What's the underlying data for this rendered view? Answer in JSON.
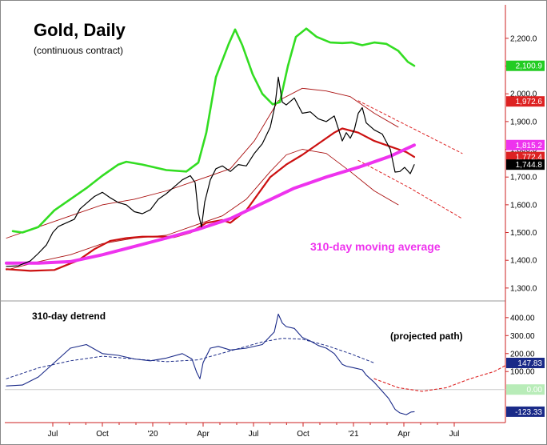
{
  "chart_data": [
    {
      "type": "line",
      "title": "Gold, Daily",
      "subtitle": "(continuous contract)",
      "annotation": "310-day moving average",
      "x_ticks": [
        "Jul",
        "Oct",
        "'20",
        "Apr",
        "Jul",
        "Oct",
        "'21",
        "Apr",
        "Jul"
      ],
      "y_ticks": [
        "1,300.0",
        "1,400.0",
        "1,500.0",
        "1,600.0",
        "1,700.0",
        "1,800.0",
        "1,900.0",
        "2,000.0",
        "2,100.0",
        "2,200.0"
      ],
      "y_tick_values": [
        1300,
        1400,
        1500,
        1600,
        1700,
        1800,
        1900,
        2000,
        2100,
        2200
      ],
      "ylim": [
        1265,
        2315
      ],
      "grid": false,
      "value_badges": [
        {
          "label": "2,100.9",
          "value": 2100.9,
          "color": "#22cc22",
          "text_color": "#ffffff"
        },
        {
          "label": "1,972.6",
          "value": 1972.6,
          "color": "#dd2222",
          "text_color": "#ffffff"
        },
        {
          "label": "1,815.2",
          "value": 1815.2,
          "color": "#ee33ee",
          "text_color": "#ffffff"
        },
        {
          "label": "1,772.4",
          "value": 1772.4,
          "color": "#dd2222",
          "text_color": "#ffffff"
        },
        {
          "label": "1,744.8",
          "value": 1744.8,
          "color": "#000000",
          "text_color": "#ffffff"
        }
      ],
      "series": [
        {
          "role": "price",
          "color": "#000000",
          "points": [
            [
              0,
              1378
            ],
            [
              15,
              1380
            ],
            [
              30,
              1398
            ],
            [
              40,
              1425
            ],
            [
              50,
              1455
            ],
            [
              58,
              1500
            ],
            [
              65,
              1522
            ],
            [
              75,
              1535
            ],
            [
              85,
              1548
            ],
            [
              92,
              1585
            ],
            [
              100,
              1605
            ],
            [
              110,
              1630
            ],
            [
              120,
              1645
            ],
            [
              130,
              1625
            ],
            [
              140,
              1608
            ],
            [
              150,
              1600
            ],
            [
              160,
              1575
            ],
            [
              170,
              1568
            ],
            [
              180,
              1582
            ],
            [
              190,
              1620
            ],
            [
              200,
              1640
            ],
            [
              210,
              1665
            ],
            [
              220,
              1690
            ],
            [
              230,
              1705
            ],
            [
              236,
              1680
            ],
            [
              240,
              1570
            ],
            [
              244,
              1520
            ],
            [
              248,
              1610
            ],
            [
              255,
              1690
            ],
            [
              262,
              1730
            ],
            [
              270,
              1740
            ],
            [
              280,
              1720
            ],
            [
              290,
              1745
            ],
            [
              300,
              1740
            ],
            [
              310,
              1785
            ],
            [
              320,
              1820
            ],
            [
              330,
              1880
            ],
            [
              336,
              1960
            ],
            [
              340,
              2060
            ],
            [
              345,
              1970
            ],
            [
              350,
              1960
            ],
            [
              360,
              1985
            ],
            [
              370,
              1930
            ],
            [
              380,
              1935
            ],
            [
              390,
              1910
            ],
            [
              400,
              1900
            ],
            [
              410,
              1920
            ],
            [
              420,
              1830
            ],
            [
              425,
              1860
            ],
            [
              430,
              1840
            ],
            [
              435,
              1870
            ],
            [
              440,
              1930
            ],
            [
              445,
              1950
            ],
            [
              450,
              1895
            ],
            [
              460,
              1870
            ],
            [
              470,
              1855
            ],
            [
              480,
              1800
            ],
            [
              486,
              1718
            ],
            [
              492,
              1720
            ],
            [
              498,
              1735
            ],
            [
              505,
              1712
            ],
            [
              510,
              1744.8
            ]
          ]
        },
        {
          "role": "ma-310",
          "color": "#ee33ee",
          "points": [
            [
              0,
              1390
            ],
            [
              40,
              1390
            ],
            [
              80,
              1395
            ],
            [
              120,
              1420
            ],
            [
              160,
              1450
            ],
            [
              200,
              1480
            ],
            [
              240,
              1512
            ],
            [
              280,
              1550
            ],
            [
              320,
              1605
            ],
            [
              360,
              1660
            ],
            [
              400,
              1700
            ],
            [
              440,
              1735
            ],
            [
              480,
              1775
            ],
            [
              510,
              1815.2
            ]
          ]
        },
        {
          "role": "ma-short",
          "color": "#cc1111",
          "points": [
            [
              0,
              1368
            ],
            [
              30,
              1362
            ],
            [
              60,
              1365
            ],
            [
              90,
              1400
            ],
            [
              110,
              1440
            ],
            [
              130,
              1470
            ],
            [
              150,
              1480
            ],
            [
              170,
              1485
            ],
            [
              190,
              1485
            ],
            [
              210,
              1484
            ],
            [
              230,
              1500
            ],
            [
              250,
              1535
            ],
            [
              270,
              1545
            ],
            [
              280,
              1535
            ],
            [
              300,
              1580
            ],
            [
              330,
              1700
            ],
            [
              350,
              1745
            ],
            [
              370,
              1780
            ],
            [
              390,
              1820
            ],
            [
              410,
              1860
            ],
            [
              420,
              1875
            ],
            [
              440,
              1860
            ],
            [
              460,
              1830
            ],
            [
              480,
              1810
            ],
            [
              500,
              1790
            ],
            [
              510,
              1772.4
            ]
          ]
        },
        {
          "role": "envelope-upper",
          "color": "#aa1111",
          "points": [
            [
              0,
              1480
            ],
            [
              40,
              1520
            ],
            [
              80,
              1560
            ],
            [
              120,
              1600
            ],
            [
              160,
              1620
            ],
            [
              200,
              1650
            ],
            [
              240,
              1690
            ],
            [
              280,
              1730
            ],
            [
              310,
              1830
            ],
            [
              340,
              1975
            ],
            [
              370,
              2020
            ],
            [
              400,
              2010
            ],
            [
              430,
              1990
            ],
            [
              460,
              1930
            ],
            [
              490,
              1880
            ]
          ]
        },
        {
          "role": "envelope-lower",
          "color": "#aa1111",
          "points": [
            [
              0,
              1365
            ],
            [
              40,
              1395
            ],
            [
              80,
              1420
            ],
            [
              120,
              1460
            ],
            [
              160,
              1480
            ],
            [
              200,
              1490
            ],
            [
              240,
              1530
            ],
            [
              270,
              1560
            ],
            [
              300,
              1620
            ],
            [
              330,
              1720
            ],
            [
              350,
              1780
            ],
            [
              370,
              1800
            ],
            [
              400,
              1785
            ],
            [
              430,
              1720
            ],
            [
              460,
              1650
            ],
            [
              490,
              1600
            ]
          ]
        },
        {
          "role": "envelope-upper-projection",
          "color": "#dd2222",
          "dashed": true,
          "points": [
            [
              440,
              1975
            ],
            [
              505,
              1880
            ],
            [
              570,
              1785
            ]
          ]
        },
        {
          "role": "envelope-lower-projection",
          "color": "#dd2222",
          "dashed": true,
          "points": [
            [
              440,
              1760
            ],
            [
              505,
              1660
            ],
            [
              570,
              1550
            ]
          ]
        },
        {
          "role": "cycle",
          "color": "#33dd22",
          "points": [
            [
              8,
              1505
            ],
            [
              20,
              1500
            ],
            [
              40,
              1520
            ],
            [
              60,
              1580
            ],
            [
              80,
              1620
            ],
            [
              100,
              1660
            ],
            [
              120,
              1705
            ],
            [
              140,
              1745
            ],
            [
              150,
              1755
            ],
            [
              170,
              1745
            ],
            [
              200,
              1725
            ],
            [
              225,
              1720
            ],
            [
              240,
              1752
            ],
            [
              250,
              1860
            ],
            [
              262,
              2060
            ],
            [
              278,
              2180
            ],
            [
              286,
              2232
            ],
            [
              295,
              2175
            ],
            [
              308,
              2070
            ],
            [
              320,
              2000
            ],
            [
              333,
              1962
            ],
            [
              342,
              1970
            ],
            [
              352,
              2100
            ],
            [
              362,
              2205
            ],
            [
              375,
              2235
            ],
            [
              388,
              2205
            ],
            [
              405,
              2185
            ],
            [
              420,
              2183
            ],
            [
              432,
              2185
            ],
            [
              445,
              2175
            ],
            [
              460,
              2185
            ],
            [
              475,
              2180
            ],
            [
              490,
              2155
            ],
            [
              502,
              2115
            ],
            [
              510,
              2100.9
            ]
          ]
        }
      ]
    },
    {
      "type": "line",
      "title": "310-day detrend",
      "annotation": "(projected path)",
      "y_ticks": [
        "100.00",
        "200.00",
        "300.00",
        "400.00"
      ],
      "y_tick_values": [
        100,
        200,
        300,
        400
      ],
      "ylim": [
        -175,
        475
      ],
      "zero_label": "0.00",
      "value_badges": [
        {
          "label": "147.83",
          "value": 147.83,
          "color": "#1a2a88",
          "text_color": "#ffffff"
        },
        {
          "label": "0.00",
          "value": 0,
          "color": "#b8ecb8",
          "text_color": "#ffffff"
        },
        {
          "label": "-123.33",
          "value": -123.33,
          "color": "#1a2a88",
          "text_color": "#ffffff"
        }
      ],
      "series": [
        {
          "role": "detrend",
          "color": "#1a2a88",
          "points": [
            [
              0,
              20
            ],
            [
              20,
              25
            ],
            [
              40,
              70
            ],
            [
              60,
              150
            ],
            [
              80,
              230
            ],
            [
              100,
              250
            ],
            [
              120,
              200
            ],
            [
              140,
              190
            ],
            [
              160,
              170
            ],
            [
              180,
              160
            ],
            [
              200,
              175
            ],
            [
              220,
              200
            ],
            [
              232,
              170
            ],
            [
              238,
              95
            ],
            [
              242,
              60
            ],
            [
              246,
              150
            ],
            [
              255,
              230
            ],
            [
              265,
              240
            ],
            [
              280,
              220
            ],
            [
              300,
              230
            ],
            [
              320,
              250
            ],
            [
              335,
              320
            ],
            [
              340,
              420
            ],
            [
              345,
              370
            ],
            [
              350,
              350
            ],
            [
              360,
              340
            ],
            [
              370,
              290
            ],
            [
              380,
              270
            ],
            [
              390,
              245
            ],
            [
              400,
              230
            ],
            [
              410,
              200
            ],
            [
              420,
              140
            ],
            [
              425,
              130
            ],
            [
              435,
              120
            ],
            [
              445,
              110
            ],
            [
              450,
              80
            ],
            [
              460,
              40
            ],
            [
              470,
              -10
            ],
            [
              478,
              -50
            ],
            [
              486,
              -110
            ],
            [
              492,
              -130
            ],
            [
              500,
              -140
            ],
            [
              506,
              -125
            ],
            [
              510,
              -123.33
            ]
          ]
        },
        {
          "role": "cycle-projection",
          "color": "#1a2a88",
          "dashed": true,
          "points": [
            [
              0,
              60
            ],
            [
              40,
              120
            ],
            [
              80,
              160
            ],
            [
              120,
              185
            ],
            [
              160,
              170
            ],
            [
              200,
              155
            ],
            [
              240,
              165
            ],
            [
              280,
              215
            ],
            [
              320,
              265
            ],
            [
              345,
              285
            ],
            [
              370,
              280
            ],
            [
              400,
              245
            ],
            [
              430,
              200
            ],
            [
              460,
              147.83
            ]
          ]
        },
        {
          "role": "projected-path",
          "color": "#dd2222",
          "dashed": true,
          "points": [
            [
              460,
              60
            ],
            [
              490,
              10
            ],
            [
              520,
              -10
            ],
            [
              550,
              10
            ],
            [
              580,
              60
            ],
            [
              610,
              100
            ],
            [
              630,
              147.83
            ]
          ]
        }
      ]
    }
  ]
}
